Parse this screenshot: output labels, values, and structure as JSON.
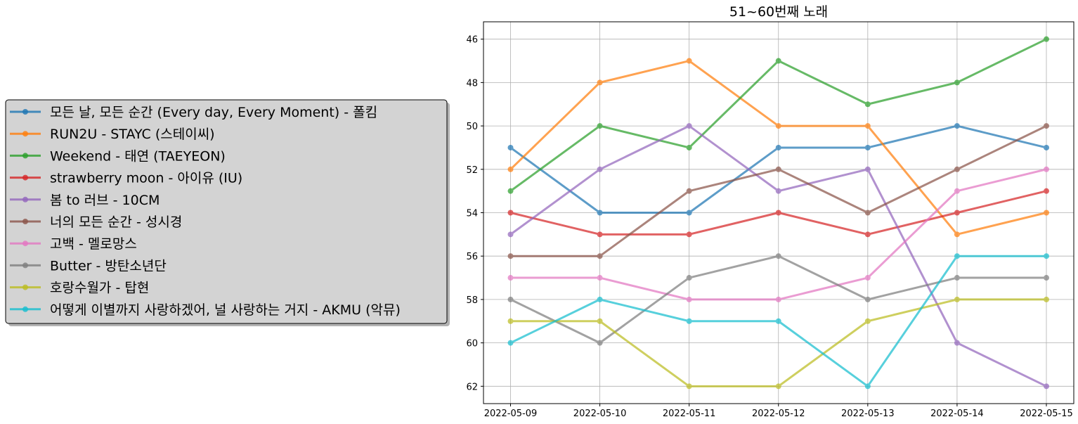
{
  "chart_data": {
    "type": "line",
    "title": "51~60번째 노래",
    "xlabel": "",
    "ylabel": "",
    "x": [
      "2022-05-09",
      "2022-05-10",
      "2022-05-11",
      "2022-05-12",
      "2022-05-13",
      "2022-05-14",
      "2022-05-15"
    ],
    "y_ticks": [
      46,
      48,
      50,
      52,
      54,
      56,
      58,
      60,
      62
    ],
    "ylim": [
      62.8,
      45.2
    ],
    "y_inverted": true,
    "grid": true,
    "legend_position": "left, outside plot",
    "markers": "circle",
    "series": [
      {
        "name": "모든 날, 모든 순간 (Every day, Every Moment) - 폴킴",
        "color": "#1f77b4",
        "values": [
          51,
          54,
          54,
          51,
          51,
          50,
          51
        ]
      },
      {
        "name": "RUN2U - STAYC (스테이씨)",
        "color": "#ff7f0e",
        "values": [
          52,
          48,
          47,
          50,
          50,
          55,
          54
        ]
      },
      {
        "name": "Weekend - 태연 (TAEYEON)",
        "color": "#2ca02c",
        "values": [
          53,
          50,
          51,
          47,
          49,
          48,
          46
        ]
      },
      {
        "name": "strawberry moon - 아이유 (IU)",
        "color": "#d62728",
        "values": [
          54,
          55,
          55,
          54,
          55,
          54,
          53
        ]
      },
      {
        "name": "봄 to 러브 - 10CM",
        "color": "#9467bd",
        "values": [
          55,
          52,
          50,
          53,
          52,
          60,
          62
        ]
      },
      {
        "name": "너의 모든 순간 - 성시경",
        "color": "#8c564b",
        "values": [
          56,
          56,
          53,
          52,
          54,
          52,
          50
        ]
      },
      {
        "name": "고백 - 멜로망스",
        "color": "#e377c2",
        "values": [
          57,
          57,
          58,
          58,
          57,
          53,
          52
        ]
      },
      {
        "name": "Butter - 방탄소년단",
        "color": "#7f7f7f",
        "values": [
          58,
          60,
          57,
          56,
          58,
          57,
          57
        ]
      },
      {
        "name": "호랑수월가 - 탑현",
        "color": "#bcbd22",
        "values": [
          59,
          59,
          62,
          62,
          59,
          58,
          58
        ]
      },
      {
        "name": "어떻게 이별까지 사랑하겠어, 널 사랑하는 거지 - AKMU (악뮤)",
        "color": "#17becf",
        "values": [
          60,
          58,
          59,
          59,
          62,
          56,
          56
        ]
      }
    ]
  }
}
